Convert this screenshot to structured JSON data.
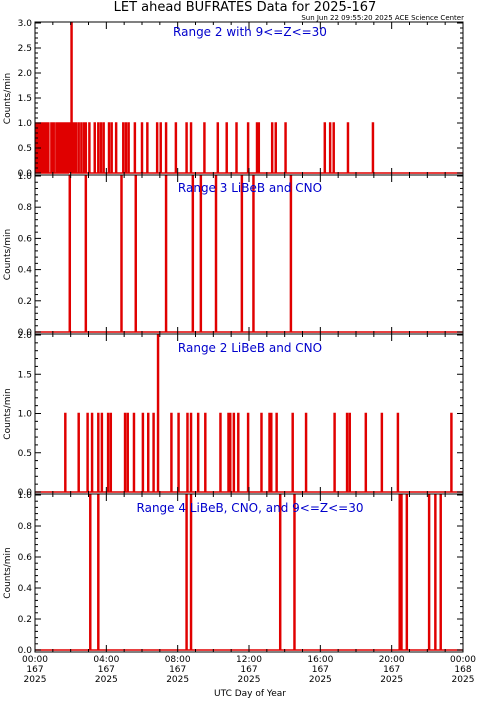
{
  "title": "LET ahead BUFRATES Data for 2025-167",
  "stamp": "Sun Jun 22 09:55:20 2025 ACE Science Center",
  "xlabel": "UTC Day of Year",
  "colors": {
    "series": "#e00000",
    "panel_label": "#0000cc",
    "frame": "#000000"
  },
  "chart_data": [
    {
      "type": "line",
      "label": "Range 2 with 9<=Z<=30",
      "ylabel": "Counts/min",
      "ylim": [
        0,
        3.0
      ],
      "yticks": [
        "0.0",
        "0.5",
        "1.0",
        "1.5",
        "2.0",
        "2.5",
        "3.0"
      ],
      "xlim": [
        0,
        24
      ],
      "baseline": 0,
      "spikes": [
        [
          0.05,
          1
        ],
        [
          0.12,
          1
        ],
        [
          0.2,
          1
        ],
        [
          0.28,
          1
        ],
        [
          0.36,
          1
        ],
        [
          0.44,
          1
        ],
        [
          0.52,
          1
        ],
        [
          0.62,
          1
        ],
        [
          0.75,
          1
        ],
        [
          0.92,
          1
        ],
        [
          1.05,
          1
        ],
        [
          1.2,
          1
        ],
        [
          1.32,
          1
        ],
        [
          1.45,
          1
        ],
        [
          1.58,
          1
        ],
        [
          1.7,
          1
        ],
        [
          1.78,
          1
        ],
        [
          1.85,
          1
        ],
        [
          1.92,
          1
        ],
        [
          1.98,
          1
        ],
        [
          2.05,
          3
        ],
        [
          2.12,
          1
        ],
        [
          2.2,
          1
        ],
        [
          2.3,
          1
        ],
        [
          2.45,
          1
        ],
        [
          2.6,
          1
        ],
        [
          2.75,
          1
        ],
        [
          2.85,
          1
        ],
        [
          3.05,
          1
        ],
        [
          3.35,
          1
        ],
        [
          3.55,
          1
        ],
        [
          3.7,
          1
        ],
        [
          3.85,
          1
        ],
        [
          4.15,
          1
        ],
        [
          4.3,
          1
        ],
        [
          4.55,
          1
        ],
        [
          4.95,
          1
        ],
        [
          5.1,
          1
        ],
        [
          5.25,
          1
        ],
        [
          5.6,
          1
        ],
        [
          6.0,
          1
        ],
        [
          6.3,
          1
        ],
        [
          6.85,
          1
        ],
        [
          7.05,
          1
        ],
        [
          7.35,
          1
        ],
        [
          7.9,
          1
        ],
        [
          8.5,
          1
        ],
        [
          8.75,
          1
        ],
        [
          9.5,
          1
        ],
        [
          10.25,
          1
        ],
        [
          10.75,
          1
        ],
        [
          11.3,
          1
        ],
        [
          11.95,
          1
        ],
        [
          12.45,
          1
        ],
        [
          12.55,
          1
        ],
        [
          13.3,
          1
        ],
        [
          13.5,
          1
        ],
        [
          14.05,
          1
        ],
        [
          16.25,
          1
        ],
        [
          16.55,
          1
        ],
        [
          16.75,
          1
        ],
        [
          17.55,
          1
        ],
        [
          18.95,
          1
        ]
      ]
    },
    {
      "type": "line",
      "label": "Range 3 LiBeB and CNO",
      "ylabel": "Counts/min",
      "ylim": [
        0,
        1.0
      ],
      "yticks": [
        "0.0",
        "0.2",
        "0.4",
        "0.6",
        "0.8",
        "1.0"
      ],
      "xlim": [
        0,
        24
      ],
      "baseline": 0,
      "spikes": [
        [
          1.95,
          1
        ],
        [
          2.85,
          1
        ],
        [
          4.85,
          1
        ],
        [
          5.65,
          1
        ],
        [
          7.35,
          1
        ],
        [
          8.85,
          1
        ],
        [
          9.3,
          1
        ],
        [
          10.15,
          1
        ],
        [
          11.6,
          1
        ],
        [
          12.25,
          1
        ],
        [
          14.35,
          1
        ]
      ]
    },
    {
      "type": "line",
      "label": "Range 2 LiBeB and CNO",
      "ylabel": "Counts/min",
      "ylim": [
        0,
        2.0
      ],
      "yticks": [
        "0.0",
        "0.5",
        "1.0",
        "1.5",
        "2.0"
      ],
      "xlim": [
        0,
        24
      ],
      "baseline": 0,
      "spikes": [
        [
          1.7,
          1
        ],
        [
          2.45,
          1
        ],
        [
          2.95,
          1
        ],
        [
          3.2,
          1
        ],
        [
          3.55,
          1
        ],
        [
          3.75,
          1
        ],
        [
          4.1,
          1
        ],
        [
          4.25,
          1
        ],
        [
          5.05,
          1
        ],
        [
          5.2,
          1
        ],
        [
          5.55,
          1
        ],
        [
          6.05,
          1
        ],
        [
          6.35,
          1
        ],
        [
          6.65,
          1
        ],
        [
          6.9,
          2
        ],
        [
          7.65,
          1
        ],
        [
          8.05,
          1
        ],
        [
          8.55,
          1
        ],
        [
          8.75,
          1
        ],
        [
          9.15,
          1
        ],
        [
          9.55,
          1
        ],
        [
          10.4,
          1
        ],
        [
          10.85,
          1
        ],
        [
          10.95,
          1
        ],
        [
          11.15,
          1
        ],
        [
          11.4,
          1
        ],
        [
          11.95,
          1
        ],
        [
          12.7,
          1
        ],
        [
          13.15,
          1
        ],
        [
          13.25,
          1
        ],
        [
          13.55,
          1
        ],
        [
          14.45,
          1
        ],
        [
          15.2,
          1
        ],
        [
          16.8,
          1
        ],
        [
          17.5,
          1
        ],
        [
          17.65,
          1
        ],
        [
          18.55,
          1
        ],
        [
          19.45,
          1
        ],
        [
          20.35,
          1
        ],
        [
          23.35,
          1
        ]
      ]
    },
    {
      "type": "line",
      "label": "Range 4 LiBeB, CNO, and 9<=Z<=30",
      "ylabel": "Counts/min",
      "ylim": [
        0,
        1.0
      ],
      "yticks": [
        "0.0",
        "0.2",
        "0.4",
        "0.6",
        "0.8",
        "1.0"
      ],
      "xlim": [
        0,
        24
      ],
      "baseline": 0,
      "spikes": [
        [
          3.1,
          1
        ],
        [
          3.55,
          1
        ],
        [
          8.5,
          1
        ],
        [
          8.75,
          1
        ],
        [
          13.75,
          1
        ],
        [
          14.55,
          1
        ],
        [
          20.45,
          1
        ],
        [
          20.55,
          1
        ],
        [
          20.85,
          1
        ],
        [
          22.1,
          1
        ],
        [
          22.45,
          1
        ],
        [
          22.75,
          1
        ]
      ]
    }
  ],
  "xticks": [
    {
      "time": "00:00",
      "doy": "167",
      "year": "2025"
    },
    {
      "time": "04:00",
      "doy": "167",
      "year": "2025"
    },
    {
      "time": "08:00",
      "doy": "167",
      "year": "2025"
    },
    {
      "time": "12:00",
      "doy": "167",
      "year": "2025"
    },
    {
      "time": "16:00",
      "doy": "167",
      "year": "2025"
    },
    {
      "time": "20:00",
      "doy": "167",
      "year": "2025"
    },
    {
      "time": "00:00",
      "doy": "168",
      "year": "2025"
    }
  ]
}
